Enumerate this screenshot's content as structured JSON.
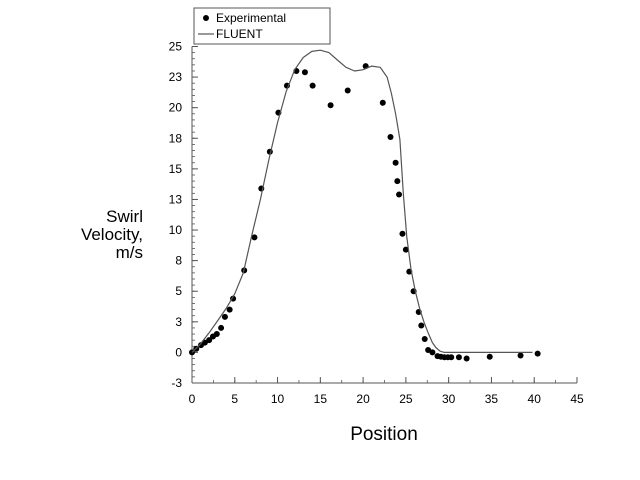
{
  "chart_data": {
    "type": "scatter",
    "title": "",
    "xlabel": "Position",
    "ylabel_lines": [
      "Swirl",
      "Velocity,",
      "m/s"
    ],
    "xlim": [
      0,
      45
    ],
    "ylim": [
      -2.5,
      25
    ],
    "x_ticks": [
      0,
      5,
      10,
      15,
      20,
      25,
      30,
      35,
      40,
      45
    ],
    "x_tick_labels": [
      "0",
      "5",
      "10",
      "15",
      "20",
      "25",
      "30",
      "35",
      "40",
      "45"
    ],
    "y_ticks": [
      25,
      22.5,
      20,
      17.5,
      15,
      12.5,
      10,
      7.5,
      5,
      2.5,
      0,
      -2.5
    ],
    "y_tick_labels": [
      "25",
      "23",
      "20",
      "18",
      "15",
      "13",
      "10",
      "8",
      "5",
      "3",
      "0",
      "-3"
    ],
    "grid": false,
    "legend_position": "top-left",
    "series": [
      {
        "name": "Experimental",
        "kind": "markers",
        "color": "#000000",
        "points": [
          [
            0,
            0
          ],
          [
            0.5,
            0.3
          ],
          [
            1.05,
            0.6
          ],
          [
            1.5,
            0.8
          ],
          [
            2.0,
            1.0
          ],
          [
            2.45,
            1.3
          ],
          [
            2.9,
            1.5
          ],
          [
            3.4,
            2.0
          ],
          [
            3.85,
            2.9
          ],
          [
            4.4,
            3.5
          ],
          [
            4.8,
            4.4
          ],
          [
            6.1,
            6.7
          ],
          [
            7.3,
            9.4
          ],
          [
            8.1,
            13.4
          ],
          [
            9.1,
            16.4
          ],
          [
            10.1,
            19.6
          ],
          [
            11.1,
            21.8
          ],
          [
            12.2,
            23.0
          ],
          [
            13.2,
            22.9
          ],
          [
            14.1,
            21.8
          ],
          [
            16.2,
            20.2
          ],
          [
            18.2,
            21.4
          ],
          [
            20.3,
            23.4
          ],
          [
            22.3,
            20.4
          ],
          [
            23.2,
            17.6
          ],
          [
            23.8,
            15.5
          ],
          [
            24.0,
            14.0
          ],
          [
            24.2,
            12.9
          ],
          [
            24.6,
            9.7
          ],
          [
            25.0,
            8.4
          ],
          [
            25.4,
            6.6
          ],
          [
            25.9,
            5.0
          ],
          [
            26.5,
            3.3
          ],
          [
            26.8,
            2.2
          ],
          [
            27.2,
            1.1
          ],
          [
            27.6,
            0.2
          ],
          [
            28.1,
            0
          ],
          [
            28.7,
            -0.3
          ],
          [
            29.1,
            -0.35
          ],
          [
            29.5,
            -0.4
          ],
          [
            29.9,
            -0.4
          ],
          [
            30.3,
            -0.4
          ],
          [
            31.2,
            -0.4
          ],
          [
            32.1,
            -0.5
          ],
          [
            34.8,
            -0.35
          ],
          [
            38.4,
            -0.25
          ],
          [
            40.4,
            -0.1
          ]
        ]
      },
      {
        "name": "FLUENT",
        "kind": "line",
        "color": "#555555",
        "points": [
          [
            0,
            0
          ],
          [
            1,
            0.7
          ],
          [
            2,
            1.6
          ],
          [
            3,
            2.6
          ],
          [
            4,
            3.6
          ],
          [
            5,
            4.8
          ],
          [
            6,
            6.5
          ],
          [
            7,
            9.6
          ],
          [
            8,
            12.5
          ],
          [
            9,
            15.8
          ],
          [
            10,
            18.8
          ],
          [
            11,
            21.3
          ],
          [
            12,
            23.1
          ],
          [
            13,
            24.1
          ],
          [
            14,
            24.6
          ],
          [
            15,
            24.7
          ],
          [
            16,
            24.5
          ],
          [
            17,
            23.9
          ],
          [
            18,
            23.3
          ],
          [
            19,
            23.0
          ],
          [
            20,
            23.1
          ],
          [
            21,
            23.4
          ],
          [
            22,
            23.3
          ],
          [
            22.8,
            22.5
          ],
          [
            23.3,
            21.2
          ],
          [
            23.8,
            19.5
          ],
          [
            24.3,
            17.4
          ],
          [
            24.7,
            13
          ],
          [
            25.1,
            9.5
          ],
          [
            25.6,
            6.8
          ],
          [
            26.1,
            5.0
          ],
          [
            26.6,
            3.6
          ],
          [
            27.1,
            2.5
          ],
          [
            27.6,
            1.6
          ],
          [
            28.1,
            0.8
          ],
          [
            28.5,
            0.4
          ],
          [
            29,
            0.1
          ],
          [
            29.5,
            0
          ],
          [
            39.8,
            0
          ]
        ]
      }
    ]
  }
}
